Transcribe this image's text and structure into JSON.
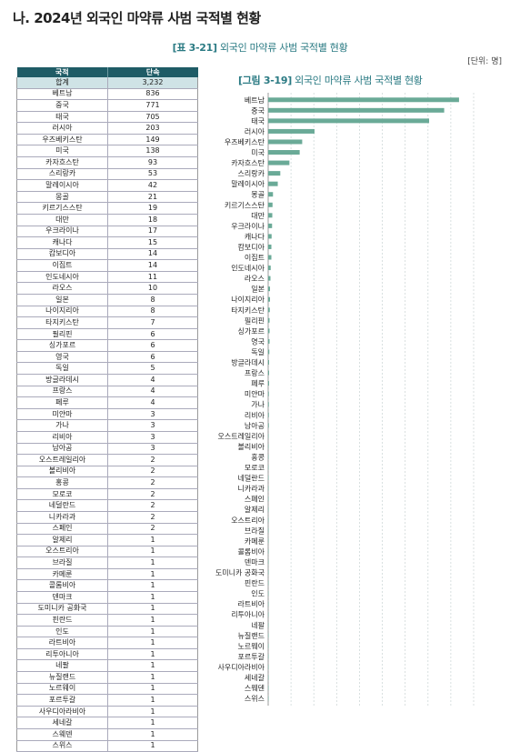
{
  "section_title": "나. 2024년 외국인 마약류 사범 국적별 현황",
  "table_caption_num": "[표 3-21]",
  "table_caption_text": "외국인 마약류 사범 국적별 현황",
  "unit": "[단위: 명]",
  "table": {
    "headers": [
      "국적",
      "단속"
    ],
    "total_label": "합계",
    "total_value": "3,232",
    "rows": [
      [
        "베트남",
        "836"
      ],
      [
        "중국",
        "771"
      ],
      [
        "태국",
        "705"
      ],
      [
        "러시아",
        "203"
      ],
      [
        "우즈베키스탄",
        "149"
      ],
      [
        "미국",
        "138"
      ],
      [
        "카자흐스탄",
        "93"
      ],
      [
        "스리랑카",
        "53"
      ],
      [
        "말레이시아",
        "42"
      ],
      [
        "몽골",
        "21"
      ],
      [
        "키르기스스탄",
        "19"
      ],
      [
        "대만",
        "18"
      ],
      [
        "우크라이나",
        "17"
      ],
      [
        "캐나다",
        "15"
      ],
      [
        "캄보디아",
        "14"
      ],
      [
        "이집트",
        "14"
      ],
      [
        "인도네시아",
        "11"
      ],
      [
        "라오스",
        "10"
      ],
      [
        "일본",
        "8"
      ],
      [
        "나이지리아",
        "8"
      ],
      [
        "타지키스탄",
        "7"
      ],
      [
        "필리핀",
        "6"
      ],
      [
        "싱가포르",
        "6"
      ],
      [
        "영국",
        "6"
      ],
      [
        "독일",
        "5"
      ],
      [
        "방글라데시",
        "4"
      ],
      [
        "프랑스",
        "4"
      ],
      [
        "페루",
        "4"
      ],
      [
        "미얀마",
        "3"
      ],
      [
        "가나",
        "3"
      ],
      [
        "리비아",
        "3"
      ],
      [
        "남아공",
        "3"
      ],
      [
        "오스트레일리아",
        "2"
      ],
      [
        "볼리비아",
        "2"
      ],
      [
        "홍콩",
        "2"
      ],
      [
        "모로코",
        "2"
      ],
      [
        "네덜란드",
        "2"
      ],
      [
        "니카라과",
        "2"
      ],
      [
        "스페인",
        "2"
      ],
      [
        "알제리",
        "1"
      ],
      [
        "오스트리아",
        "1"
      ],
      [
        "브라질",
        "1"
      ],
      [
        "카메룬",
        "1"
      ],
      [
        "콜롬비아",
        "1"
      ],
      [
        "덴마크",
        "1"
      ],
      [
        "도미니카 공화국",
        "1"
      ],
      [
        "핀란드",
        "1"
      ],
      [
        "인도",
        "1"
      ],
      [
        "라트비아",
        "1"
      ],
      [
        "리투아니아",
        "1"
      ],
      [
        "네팔",
        "1"
      ],
      [
        "뉴질랜드",
        "1"
      ],
      [
        "노르웨이",
        "1"
      ],
      [
        "포르투갈",
        "1"
      ],
      [
        "사우디아라비아",
        "1"
      ],
      [
        "세네갈",
        "1"
      ],
      [
        "스웨덴",
        "1"
      ],
      [
        "스위스",
        "1"
      ]
    ]
  },
  "figure_caption_num": "[그림 3-19]",
  "figure_caption_text": "외국인 마약류 사범 국적별 현황",
  "bar_color": "#6aaa97",
  "chart_data": {
    "type": "bar",
    "orientation": "horizontal",
    "categories": [
      "베트남",
      "중국",
      "태국",
      "러시아",
      "우즈베키스탄",
      "미국",
      "카자흐스탄",
      "스리랑카",
      "말레이시아",
      "몽골",
      "키르기스스탄",
      "대만",
      "우크라이나",
      "캐나다",
      "캄보디아",
      "이집트",
      "인도네시아",
      "라오스",
      "일본",
      "나이지리아",
      "타지키스탄",
      "필리핀",
      "싱가포르",
      "영국",
      "독일",
      "방글라데시",
      "프랑스",
      "페루",
      "미얀마",
      "가나",
      "리비아",
      "남아공",
      "오스트레일리아",
      "볼리비아",
      "홍콩",
      "모로코",
      "네덜란드",
      "니카라과",
      "스페인",
      "알제리",
      "오스트리아",
      "브라질",
      "카메룬",
      "콜롬비아",
      "덴마크",
      "도미니카 공화국",
      "핀란드",
      "인도",
      "라트비아",
      "리투아니아",
      "네팔",
      "뉴질랜드",
      "노르웨이",
      "포르투갈",
      "사우디아라비아",
      "세네갈",
      "스웨덴",
      "스위스"
    ],
    "values": [
      836,
      771,
      705,
      203,
      149,
      138,
      93,
      53,
      42,
      21,
      19,
      18,
      17,
      15,
      14,
      14,
      11,
      10,
      8,
      8,
      7,
      6,
      6,
      6,
      5,
      4,
      4,
      4,
      3,
      3,
      3,
      3,
      2,
      2,
      2,
      2,
      2,
      2,
      2,
      1,
      1,
      1,
      1,
      1,
      1,
      1,
      1,
      1,
      1,
      1,
      1,
      1,
      1,
      1,
      1,
      1,
      1,
      1
    ],
    "xlim": [
      0,
      900
    ],
    "xticks": [
      "0",
      "100",
      "200",
      "300",
      "400",
      "500",
      "600",
      "700",
      "800",
      "900"
    ],
    "grid": "vertical dashed"
  }
}
